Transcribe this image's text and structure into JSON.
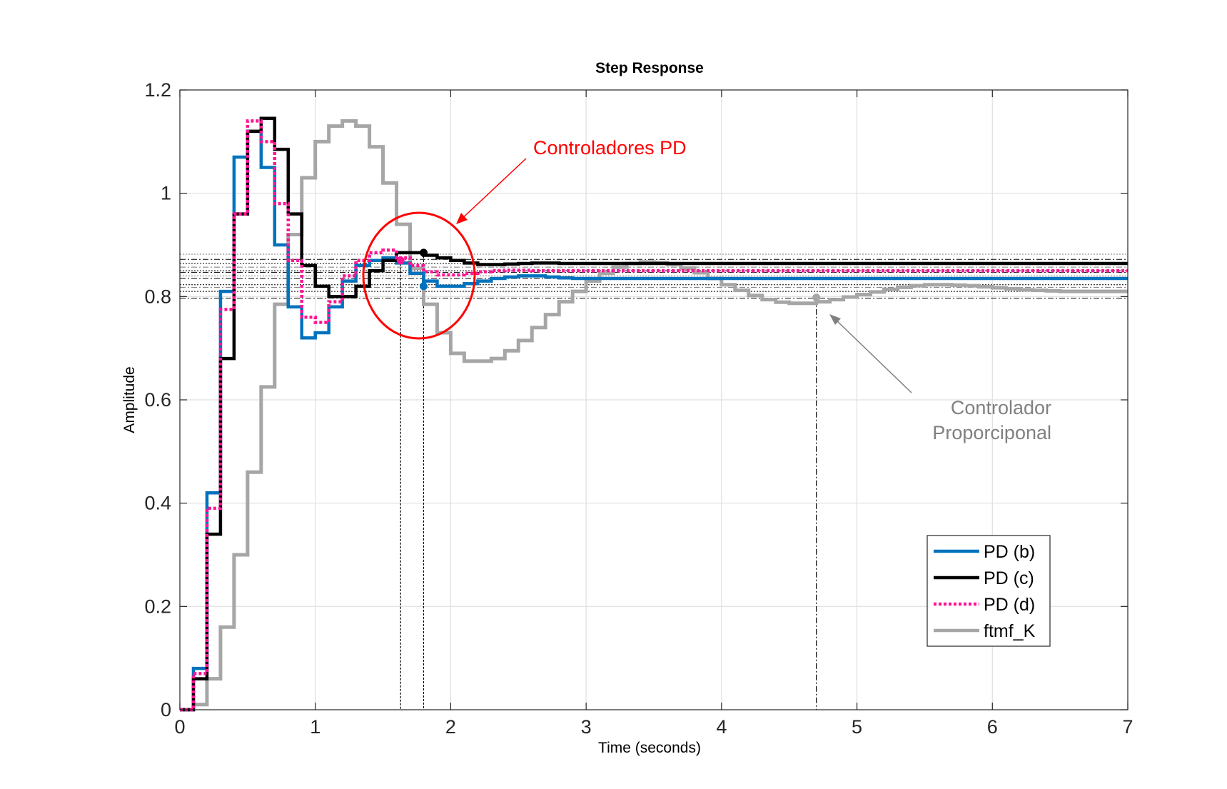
{
  "chart_data": {
    "type": "line",
    "title": "Step Response",
    "xlabel": "Time (seconds)",
    "ylabel": "Amplitude",
    "xlim": [
      0,
      7
    ],
    "ylim": [
      0,
      1.2
    ],
    "xticks": [
      0,
      1,
      2,
      3,
      4,
      5,
      6,
      7
    ],
    "xtick_labels": [
      "0",
      "1",
      "2",
      "3",
      "4",
      "5",
      "6",
      "7"
    ],
    "yticks": [
      0,
      0.2,
      0.4,
      0.6,
      0.8,
      1.0,
      1.2
    ],
    "ytick_labels": [
      "0",
      "0.2",
      "0.4",
      "0.6",
      "0.8",
      "1",
      "1.2"
    ],
    "grid": true,
    "step": true,
    "dt": 0.1,
    "legend_position": "bottom-right",
    "series": [
      {
        "name": "PD (b)",
        "color": "#0072BD",
        "style": "solid",
        "values": [
          0,
          0.08,
          0.42,
          0.81,
          1.07,
          1.12,
          1.05,
          0.9,
          0.78,
          0.72,
          0.73,
          0.78,
          0.83,
          0.86,
          0.87,
          0.875,
          0.865,
          0.845,
          0.83,
          0.82,
          0.82,
          0.825,
          0.83,
          0.835,
          0.838,
          0.84,
          0.84,
          0.838,
          0.836,
          0.835,
          0.835,
          0.835,
          0.835,
          0.835,
          0.835,
          0.835,
          0.835,
          0.835,
          0.835,
          0.835,
          0.835,
          0.835,
          0.835,
          0.835,
          0.835,
          0.835,
          0.835,
          0.835,
          0.835,
          0.835,
          0.835,
          0.835,
          0.835,
          0.835,
          0.835,
          0.835,
          0.835,
          0.835,
          0.835,
          0.835,
          0.835,
          0.835,
          0.835,
          0.835,
          0.835,
          0.835,
          0.835,
          0.835,
          0.835,
          0.835
        ],
        "steady_state": 0.835
      },
      {
        "name": "PD (c)",
        "color": "#000000",
        "style": "solid",
        "values": [
          0,
          0.06,
          0.34,
          0.68,
          0.96,
          1.12,
          1.145,
          1.085,
          0.96,
          0.86,
          0.82,
          0.8,
          0.8,
          0.82,
          0.85,
          0.87,
          0.885,
          0.885,
          0.88,
          0.875,
          0.87,
          0.865,
          0.862,
          0.862,
          0.863,
          0.864,
          0.865,
          0.865,
          0.864,
          0.864,
          0.864,
          0.864,
          0.864,
          0.864,
          0.864,
          0.864,
          0.864,
          0.864,
          0.864,
          0.864,
          0.864,
          0.864,
          0.864,
          0.864,
          0.864,
          0.864,
          0.864,
          0.864,
          0.864,
          0.864,
          0.864,
          0.864,
          0.864,
          0.864,
          0.864,
          0.864,
          0.864,
          0.864,
          0.864,
          0.864,
          0.864,
          0.864,
          0.864,
          0.864,
          0.864,
          0.864,
          0.864,
          0.864,
          0.864,
          0.864
        ],
        "steady_state": 0.864
      },
      {
        "name": "PD (d)",
        "color": "#FF1493",
        "style": "dotted",
        "values": [
          0,
          0.07,
          0.39,
          0.775,
          0.96,
          1.14,
          1.1,
          0.98,
          0.87,
          0.76,
          0.75,
          0.79,
          0.84,
          0.87,
          0.885,
          0.89,
          0.875,
          0.86,
          0.848,
          0.842,
          0.842,
          0.845,
          0.848,
          0.85,
          0.851,
          0.851,
          0.85,
          0.85,
          0.85,
          0.85,
          0.85,
          0.85,
          0.85,
          0.85,
          0.85,
          0.85,
          0.85,
          0.85,
          0.85,
          0.85,
          0.85,
          0.85,
          0.85,
          0.85,
          0.85,
          0.85,
          0.85,
          0.85,
          0.85,
          0.85,
          0.85,
          0.85,
          0.85,
          0.85,
          0.85,
          0.85,
          0.85,
          0.85,
          0.85,
          0.85,
          0.85,
          0.85,
          0.85,
          0.85,
          0.85,
          0.85,
          0.85,
          0.85,
          0.85,
          0.85
        ],
        "steady_state": 0.85
      },
      {
        "name": "ftmf_K",
        "color": "#A6A6A6",
        "style": "solid",
        "values": [
          0,
          0.01,
          0.06,
          0.16,
          0.3,
          0.46,
          0.625,
          0.785,
          0.92,
          1.03,
          1.1,
          1.13,
          1.14,
          1.13,
          1.09,
          1.02,
          0.94,
          0.855,
          0.785,
          0.73,
          0.69,
          0.675,
          0.675,
          0.68,
          0.695,
          0.715,
          0.74,
          0.765,
          0.79,
          0.81,
          0.83,
          0.845,
          0.857,
          0.864,
          0.867,
          0.866,
          0.862,
          0.855,
          0.846,
          0.835,
          0.823,
          0.812,
          0.802,
          0.794,
          0.789,
          0.787,
          0.787,
          0.79,
          0.794,
          0.799,
          0.804,
          0.809,
          0.814,
          0.818,
          0.821,
          0.823,
          0.823,
          0.822,
          0.821,
          0.819,
          0.817,
          0.815,
          0.813,
          0.812,
          0.811,
          0.81,
          0.81,
          0.81,
          0.81,
          0.81
        ],
        "steady_state": 0.81
      }
    ],
    "markers": [
      {
        "series": "PD (b)",
        "x": 1.8,
        "y": 0.82
      },
      {
        "series": "PD (c)",
        "x": 1.8,
        "y": 0.885
      },
      {
        "series": "PD (d)",
        "x": 1.63,
        "y": 0.87
      },
      {
        "series": "ftmf_K",
        "x": 4.7,
        "y": 0.798
      }
    ],
    "settling_lines_x": [
      1.63,
      1.8,
      4.7
    ],
    "reference_lines_y": [
      0.797,
      0.81,
      0.818,
      0.823,
      0.835,
      0.84,
      0.847,
      0.85,
      0.857,
      0.864,
      0.872,
      0.882
    ],
    "annotations": [
      {
        "text": "Controladores PD",
        "color": "#FF0000",
        "points_to": "ellipse around overshoot near t=1.75"
      },
      {
        "text": "Controlador Proporciponal",
        "lines": [
          "Controlador",
          "Proporciponal"
        ],
        "color": "#808080",
        "points_to": "ftmf_K curve near t=4.85, y=0.79"
      }
    ]
  },
  "colors": {
    "axes": "#262626",
    "grid": "#DFDFDF",
    "red_annotation": "#FF0000",
    "gray_annotation": "#808080"
  }
}
